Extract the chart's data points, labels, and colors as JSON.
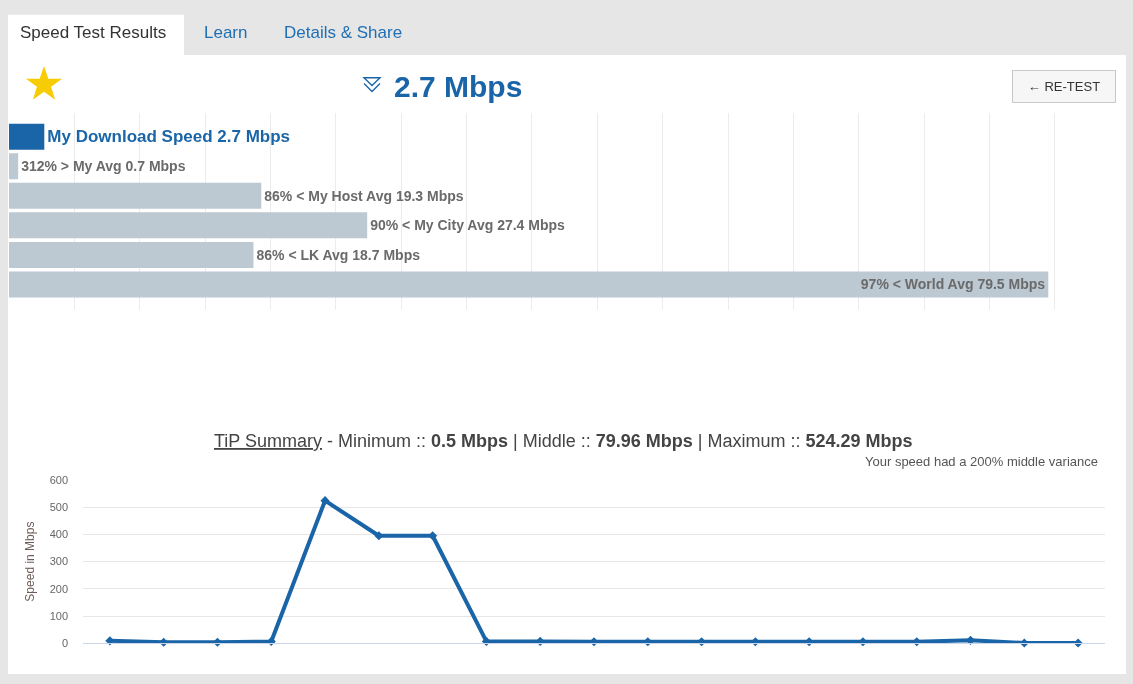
{
  "chart_data": [
    {
      "type": "bar",
      "orientation": "horizontal",
      "title": "2.7 Mbps",
      "annotations": [
        "Speed Test Results",
        "Learn",
        "Details & Share",
        "← RE-TEST"
      ],
      "categories": [
        null,
        null,
        null,
        null,
        null,
        null
      ],
      "values": [
        2.7,
        0.7,
        19.3,
        27.4,
        18.7,
        79.5
      ],
      "colors": [
        "#1a65a8",
        "#bcc8d2",
        "#bcc8d2",
        "#bcc8d2",
        "#bcc8d2",
        "#bcc8d2"
      ],
      "value_labels": [
        "My Download Speed 2.7 Mbps",
        "312% > My Avg 0.7 Mbps",
        "86% < My Host Avg 19.3 Mbps",
        "90% < My City Avg 27.4 Mbps",
        "86% < LK Avg 18.7 Mbps",
        "97% < World Avg 79.5 Mbps"
      ],
      "xticks": [
        {
          "value": 5,
          "label": null
        },
        {
          "value": 10,
          "label": null
        },
        {
          "value": 15,
          "label": null
        },
        {
          "value": 20,
          "label": null
        },
        {
          "value": 25,
          "label": null
        },
        {
          "value": 30,
          "label": null
        },
        {
          "value": 35,
          "label": null
        },
        {
          "value": 40,
          "label": null
        },
        {
          "value": 45,
          "label": null
        },
        {
          "value": 50,
          "label": null
        },
        {
          "value": 55,
          "label": null
        },
        {
          "value": 60,
          "label": null
        },
        {
          "value": 65,
          "label": null
        },
        {
          "value": 70,
          "label": null
        },
        {
          "value": 75,
          "label": null
        },
        {
          "value": 80,
          "label": null
        }
      ],
      "grid": "x",
      "tick_labels": false
    },
    {
      "type": "line",
      "title": "TiP Summary - Minimum :: 0.5 Mbps | Middle :: 79.96 Mbps | Maximum :: 524.29 Mbps",
      "subtitle": "Your speed had a 200% middle variance",
      "ylabel": "Speed in Mbps",
      "categories": [
        null,
        null,
        null,
        null,
        null,
        null,
        null,
        null,
        null,
        null,
        null,
        null,
        null,
        null,
        null,
        null,
        null,
        null,
        null
      ],
      "series": [
        {
          "color": "#1a65a8",
          "values": [
            9,
            4,
            4,
            7,
            524,
            395,
            395,
            7,
            7,
            6,
            6,
            6,
            6,
            6,
            6,
            6,
            11,
            1,
            1
          ]
        }
      ],
      "ylim": [
        0,
        600
      ],
      "yticks": [
        0,
        100,
        200,
        300,
        400,
        500,
        600
      ],
      "grid": "y",
      "marker": "diamond",
      "line_style": "solid",
      "tick_labels": "y"
    }
  ]
}
